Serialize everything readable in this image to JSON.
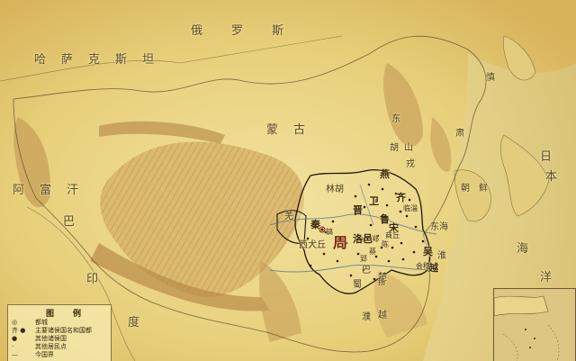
{
  "map": {
    "country_labels": {
      "russia": "俄　　罗　　斯",
      "kazakhstan": "哈　萨　克　斯　坦",
      "afghanistan": "阿　富　汗",
      "pakistan_ba": "巴",
      "india": "印",
      "india_du": "度",
      "korea": "朝　鲜",
      "japan_ri": "日",
      "japan_ben": "本",
      "sea_hai": "海",
      "sea_yang": "洋"
    },
    "region_labels": {
      "mongol": "蒙　古",
      "linhu": "林胡",
      "donghu": "东",
      "hu": "胡",
      "shan": "山",
      "rong": "戎",
      "xirong": "西犬丘",
      "qiang": "羌",
      "ba": "巴",
      "shu": "蜀",
      "pu": "濮",
      "yue": "越",
      "donghai": "东海",
      "huaiyi": "淮",
      "wu": "吴",
      "yueguo": "越",
      "chu": "楚",
      "su": "肃",
      "shen": "慎"
    },
    "state_labels": {
      "zhou": "周",
      "qin": "秦",
      "jin": "晋",
      "yan": "燕",
      "qi": "齐",
      "lu": "鲁",
      "song": "宋",
      "wei": "卫",
      "zheng": "郑",
      "chen": "陈",
      "cai": "蔡",
      "wuguo": "吴",
      "yuestate": "越",
      "luoyi": "洛邑",
      "haojing": "镐",
      "linzi": "临淄",
      "kuaiji": "会稽",
      "ying": "郢",
      "shangqiu": "商丘",
      "yangzhou": "扬"
    },
    "legend": {
      "title": "图　例",
      "items": [
        {
          "sym": "◎",
          "label": "都城"
        },
        {
          "sym": "齐 ●",
          "label": "主要诸侯国名和国都"
        },
        {
          "sym": "●",
          "label": "其他诸侯国"
        },
        {
          "sym": "·",
          "label": "其他居民点"
        },
        {
          "sym": "—",
          "label": "今国界"
        }
      ]
    },
    "colors": {
      "base": "#e9d27a",
      "mountain": "#c79c55",
      "border": "#3a2a10",
      "water": "#d6c584",
      "capital": "#7a1f10"
    }
  }
}
